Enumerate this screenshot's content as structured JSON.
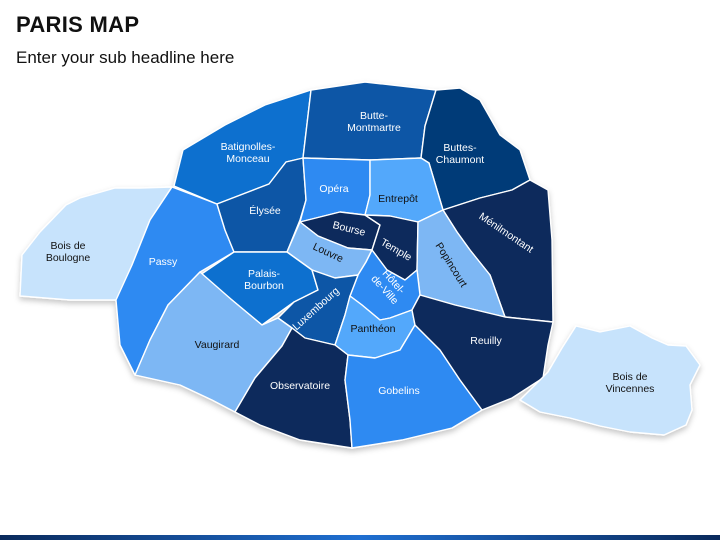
{
  "title": "PARIS MAP",
  "subtitle": "Enter your sub headline here",
  "colors": {
    "shade_1": "#0a2a5c",
    "shade_2": "#053a78",
    "shade_3": "#0a56a6",
    "shade_4": "#0b6fcf",
    "shade_5": "#2e8af2",
    "shade_6": "#52a8fb",
    "shade_7": "#7db7f4",
    "shade_8": "#9fccf7",
    "shade_9": "#c7e3fc",
    "label_dark": "#111111",
    "label_light": "#ffffff"
  },
  "regions": [
    {
      "id": "bois-de-boulogne",
      "label": "Bois de\nBoulogne",
      "color": "#c7e3fc"
    },
    {
      "id": "passy",
      "label": "Passy",
      "color": "#2e8af2"
    },
    {
      "id": "batignolles-monceau",
      "label": "Batignolles-\nMonceau",
      "color": "#0b6fcf"
    },
    {
      "id": "butte-montmartre",
      "label": "Butte-\nMontmartre",
      "color": "#0a56a6"
    },
    {
      "id": "buttes-chaumont",
      "label": "Buttes-\nChaumont",
      "color": "#053a78"
    },
    {
      "id": "elysee",
      "label": "Élysée",
      "color": "#0a56a6"
    },
    {
      "id": "opera",
      "label": "Opéra",
      "color": "#2e8af2"
    },
    {
      "id": "entrepot",
      "label": "Entrepôt",
      "color": "#52a8fb"
    },
    {
      "id": "menilmontant",
      "label": "Ménilmontant",
      "color": "#0a2a5c"
    },
    {
      "id": "bourse",
      "label": "Bourse",
      "color": "#0a2a5c"
    },
    {
      "id": "temple",
      "label": "Temple",
      "color": "#0a2a5c"
    },
    {
      "id": "louvre",
      "label": "Louvre",
      "color": "#7db7f4"
    },
    {
      "id": "popincourt",
      "label": "Popincourt",
      "color": "#7db7f4"
    },
    {
      "id": "palais-bourbon",
      "label": "Palais-\nBourbon",
      "color": "#0b6fcf"
    },
    {
      "id": "hotel-de-ville",
      "label": "Hôtel-\nde-Ville",
      "color": "#2e8af2"
    },
    {
      "id": "luxembourg",
      "label": "Luxembourg",
      "color": "#0a56a6"
    },
    {
      "id": "pantheon",
      "label": "Panthéon",
      "color": "#52a8fb"
    },
    {
      "id": "vaugirard",
      "label": "Vaugirard",
      "color": "#7db7f4"
    },
    {
      "id": "observatoire",
      "label": "Observatoire",
      "color": "#0a2a5c"
    },
    {
      "id": "gobelins",
      "label": "Gobelins",
      "color": "#2e8af2"
    },
    {
      "id": "reuilly",
      "label": "Reuilly",
      "color": "#0a2a5c"
    },
    {
      "id": "bois-de-vincennes",
      "label": "Bois de\nVincennes",
      "color": "#c7e3fc"
    }
  ]
}
